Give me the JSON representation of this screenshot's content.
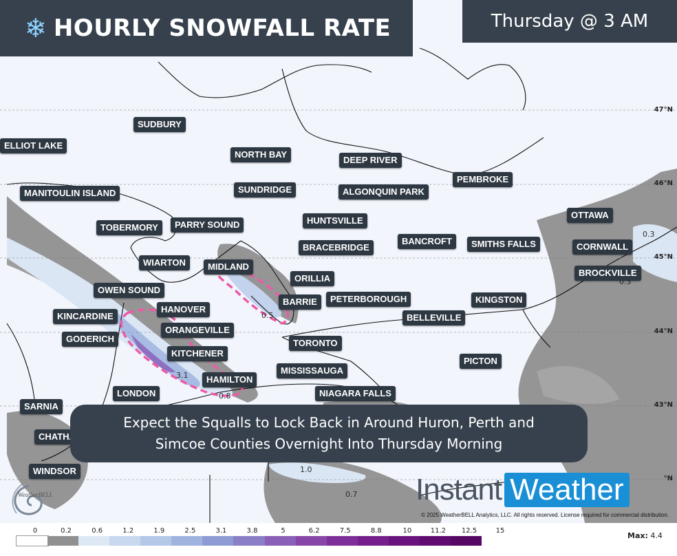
{
  "header": {
    "title": "HOURLY SNOWFALL RATE",
    "title_icon": "snowflake-icon",
    "time": "Thursday @ 3 AM"
  },
  "cities": [
    {
      "name": "SUDBURY"
    },
    {
      "name": "ELLIOT LAKE"
    },
    {
      "name": "NORTH BAY"
    },
    {
      "name": "DEEP RIVER"
    },
    {
      "name": "PEMBROKE"
    },
    {
      "name": "MANITOULIN ISLAND"
    },
    {
      "name": "SUNDRIDGE"
    },
    {
      "name": "ALGONQUIN PARK"
    },
    {
      "name": "OTTAWA"
    },
    {
      "name": "TOBERMORY"
    },
    {
      "name": "PARRY SOUND"
    },
    {
      "name": "HUNTSVILLE"
    },
    {
      "name": "BANCROFT"
    },
    {
      "name": "SMITHS FALLS"
    },
    {
      "name": "CORNWALL"
    },
    {
      "name": "BRACEBRIDGE"
    },
    {
      "name": "WIARTON"
    },
    {
      "name": "MIDLAND"
    },
    {
      "name": "BROCKVILLE"
    },
    {
      "name": "ORILLIA"
    },
    {
      "name": "OWEN SOUND"
    },
    {
      "name": "BARRIE"
    },
    {
      "name": "PETERBOROUGH"
    },
    {
      "name": "KINGSTON"
    },
    {
      "name": "HANOVER"
    },
    {
      "name": "KINCARDINE"
    },
    {
      "name": "BELLEVILLE"
    },
    {
      "name": "ORANGEVILLE"
    },
    {
      "name": "GODERICH"
    },
    {
      "name": "TORONTO"
    },
    {
      "name": "KITCHENER"
    },
    {
      "name": "PICTON"
    },
    {
      "name": "MISSISSAUGA"
    },
    {
      "name": "HAMILTON"
    },
    {
      "name": "LONDON"
    },
    {
      "name": "NIAGARA FALLS"
    },
    {
      "name": "SARNIA"
    },
    {
      "name": "CHATHAM"
    },
    {
      "name": "WINDSOR"
    }
  ],
  "values": [
    "0.3",
    "0.3",
    "0.5",
    "3.1",
    "0.8",
    "1.0",
    "0.7"
  ],
  "latitudes": [
    "47°N",
    "46°N",
    "45°N",
    "44°N",
    "43°N",
    "°N"
  ],
  "banner": {
    "line1": "Expect the Squalls to Lock Back in Around Huron, Perth and",
    "line2": "Simcoe Counties Overnight Into Thursday Morning"
  },
  "brand": {
    "part1": "Instant",
    "part2": "Weather"
  },
  "logo": {
    "text": "WeatherBELL"
  },
  "copyright": "© 2025 WeatherBELL Analytics, LLC. All rights reserved. License required for commercial distribution.",
  "legend": {
    "ticks": [
      "0",
      "0.2",
      "0.6",
      "1.2",
      "1.9",
      "2.5",
      "3.1",
      "3.8",
      "5",
      "6.2",
      "7.5",
      "8.8",
      "10",
      "11.2",
      "12.5",
      "15"
    ],
    "colors": [
      "#ffffff",
      "#909090",
      "#dde8f5",
      "#c7d8ef",
      "#b4c8e8",
      "#9fb3df",
      "#8e9ad3",
      "#8a7ec6",
      "#8a5fb7",
      "#8746a8",
      "#7e2e98",
      "#741f8b",
      "#6a127d",
      "#600b70",
      "#560663"
    ],
    "max_label": "Max:",
    "max_value": "4.4"
  }
}
